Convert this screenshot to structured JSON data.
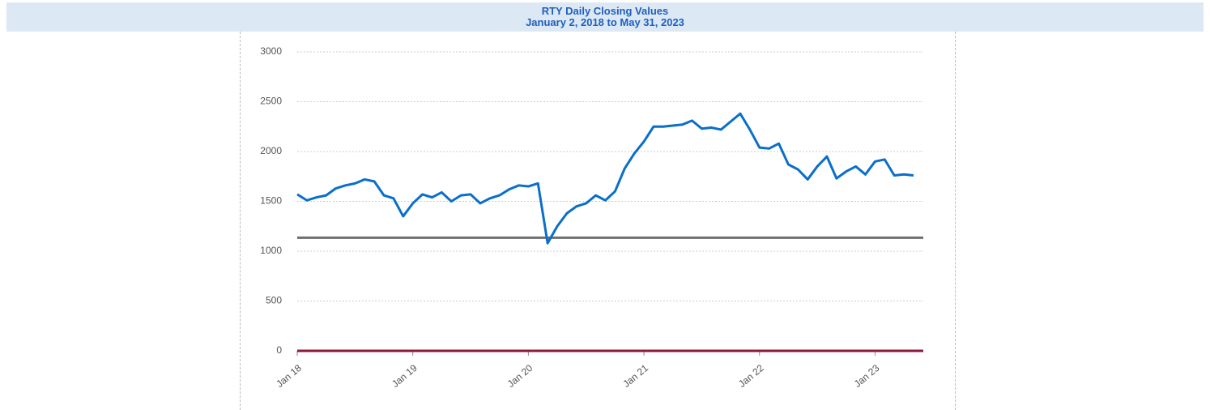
{
  "chart_data": {
    "type": "line",
    "title": "RTY Daily Closing Values",
    "subtitle": "January 2, 2018 to May 31, 2023",
    "x": [
      "2018-01",
      "2018-02",
      "2018-03",
      "2018-04",
      "2018-05",
      "2018-06",
      "2018-07",
      "2018-08",
      "2018-09",
      "2018-10",
      "2018-11",
      "2018-12",
      "2019-01",
      "2019-02",
      "2019-03",
      "2019-04",
      "2019-05",
      "2019-06",
      "2019-07",
      "2019-08",
      "2019-09",
      "2019-10",
      "2019-11",
      "2019-12",
      "2020-01",
      "2020-02",
      "2020-03",
      "2020-04",
      "2020-05",
      "2020-06",
      "2020-07",
      "2020-08",
      "2020-09",
      "2020-10",
      "2020-11",
      "2020-12",
      "2021-01",
      "2021-02",
      "2021-03",
      "2021-04",
      "2021-05",
      "2021-06",
      "2021-07",
      "2021-08",
      "2021-09",
      "2021-10",
      "2021-11",
      "2021-12",
      "2022-01",
      "2022-02",
      "2022-03",
      "2022-04",
      "2022-05",
      "2022-06",
      "2022-07",
      "2022-08",
      "2022-09",
      "2022-10",
      "2022-11",
      "2022-12",
      "2023-01",
      "2023-02",
      "2023-03",
      "2023-04",
      "2023-05"
    ],
    "series": [
      {
        "name": "RTY",
        "color": "#0a6fc9",
        "values": [
          1570,
          1510,
          1540,
          1560,
          1630,
          1660,
          1680,
          1720,
          1700,
          1560,
          1530,
          1350,
          1480,
          1570,
          1540,
          1590,
          1500,
          1560,
          1570,
          1480,
          1530,
          1560,
          1620,
          1660,
          1650,
          1680,
          1080,
          1250,
          1380,
          1450,
          1480,
          1560,
          1510,
          1600,
          1830,
          1980,
          2100,
          2250,
          2250,
          2260,
          2270,
          2310,
          2230,
          2240,
          2220,
          2300,
          2380,
          2220,
          2040,
          2030,
          2080,
          1870,
          1820,
          1720,
          1850,
          1950,
          1730,
          1800,
          1850,
          1770,
          1900,
          1920,
          1760,
          1770,
          1760
        ]
      }
    ],
    "hlines": [
      {
        "value": 1135,
        "color": "#6e6e6e"
      },
      {
        "value": 0,
        "color": "#8b1a3a"
      }
    ],
    "xlim": [
      "2018-01",
      "2023-05"
    ],
    "xticks": [
      {
        "value": "2018-01",
        "label": "Jan 18"
      },
      {
        "value": "2019-01",
        "label": "Jan 19"
      },
      {
        "value": "2020-01",
        "label": "Jan 20"
      },
      {
        "value": "2021-01",
        "label": "Jan 21"
      },
      {
        "value": "2022-01",
        "label": "Jan 22"
      },
      {
        "value": "2023-01",
        "label": "Jan 23"
      }
    ],
    "ylim": [
      0,
      3000
    ],
    "yticks": [
      0,
      500,
      1000,
      1500,
      2000,
      2500,
      3000
    ],
    "grid": true
  }
}
